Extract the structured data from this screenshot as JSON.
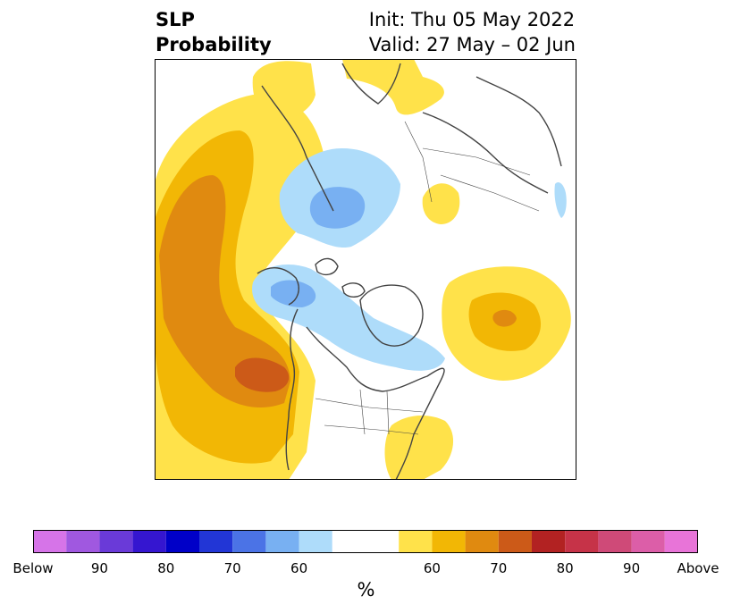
{
  "title": {
    "left_line1": "SLP",
    "left_line2": "Probability",
    "init": "Init: Thu 05 May 2022",
    "valid": "Valid: 27 May – 02 Jun"
  },
  "colors": {
    "below": [
      "#d674e8",
      "#a058e0",
      "#6a3ad8",
      "#3516d0",
      "#0000c8",
      "#2236d6",
      "#4b73e6",
      "#78b0f2",
      "#aedcfa"
    ],
    "neutral": "#ffffff",
    "above": [
      "#ffe24a",
      "#f2b705",
      "#e08a10",
      "#cc5a18",
      "#b22222",
      "#c63348",
      "#cf4a78",
      "#dc5ea8",
      "#e874d8"
    ],
    "land_outline": "#444444"
  },
  "colorbar": {
    "ticks": [
      "Below",
      "90",
      "80",
      "70",
      "60",
      "60",
      "70",
      "80",
      "90",
      "Above"
    ],
    "unit": "%"
  }
}
